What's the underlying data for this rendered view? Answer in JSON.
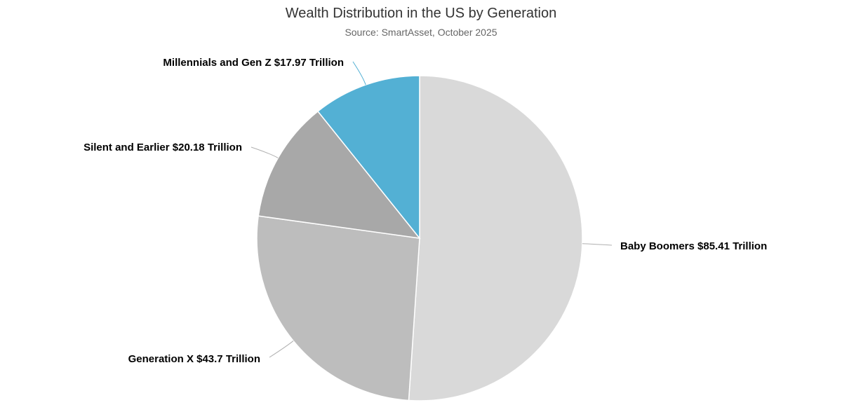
{
  "chart_data": {
    "type": "pie",
    "title": "Wealth Distribution in the US by Generation",
    "subtitle": "Source: SmartAsset, October 2025",
    "slices": [
      {
        "label": "Baby Boomers",
        "value": 85.41,
        "display": "Baby Boomers $85.41 Trillion",
        "color": "#d9d9d9"
      },
      {
        "label": "Generation X",
        "value": 43.7,
        "display": "Generation X $43.7 Trillion",
        "color": "#bdbdbd"
      },
      {
        "label": "Silent and Earlier",
        "value": 20.18,
        "display": "Silent and Earlier $20.18 Trillion",
        "color": "#a8a8a8"
      },
      {
        "label": "Millennials and Gen Z",
        "value": 17.97,
        "display": "Millennials and Gen Z $17.97 Trillion",
        "color": "#53b0d4"
      }
    ],
    "unit": "Trillion",
    "start_direction": "top",
    "direction": "clockwise"
  }
}
